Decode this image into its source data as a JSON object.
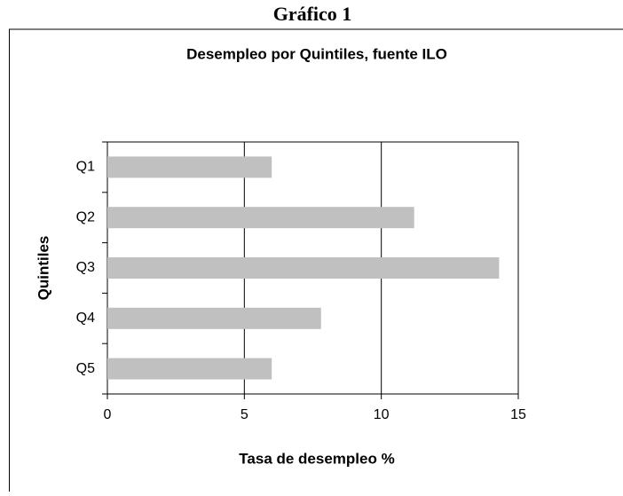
{
  "heading": "Gráfico 1",
  "chart_data": {
    "type": "bar",
    "orientation": "horizontal",
    "title": "Desempleo por Quintiles, fuente ILO",
    "x_label": "Tasa de desempleo %",
    "y_label": "Quintiles",
    "categories": [
      "Q1",
      "Q2",
      "Q3",
      "Q4",
      "Q5"
    ],
    "values": [
      6.0,
      11.2,
      14.3,
      7.8,
      6.0
    ],
    "color": "#c0c0c0",
    "xlim": [
      0,
      15
    ],
    "xticks": [
      0,
      5,
      10,
      15
    ],
    "grid": true
  }
}
